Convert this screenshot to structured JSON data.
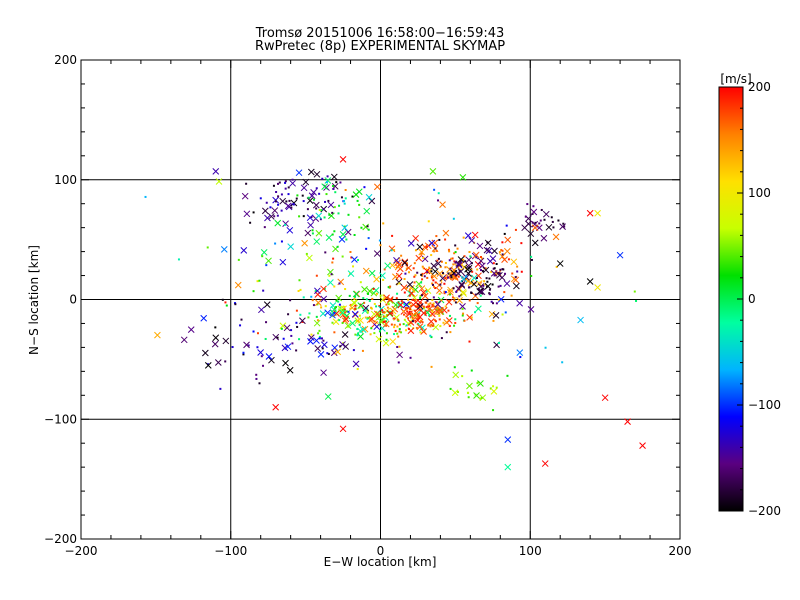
{
  "chart_data": {
    "type": "scatter",
    "title": "Tromsø 20151006 16:58:00−16:59:43",
    "subtitle": "RwPretec (8p) EXPERIMENTAL SKYMAP",
    "xlabel": "E−W location [km]",
    "ylabel": "N−S location [km]",
    "xlim": [
      -200,
      200
    ],
    "ylim": [
      -200,
      200
    ],
    "xticks": [
      -200,
      -100,
      0,
      100,
      200
    ],
    "yticks": [
      -200,
      -100,
      0,
      100,
      200
    ],
    "xticklabels": [
      "−200",
      "−100",
      "0",
      "100",
      "200"
    ],
    "yticklabels": [
      "−200",
      "−100",
      "0",
      "100",
      "200"
    ],
    "gridlines": [
      -100,
      0,
      100
    ],
    "colorbar": {
      "label": "[m/s]",
      "range": [
        -200,
        200
      ],
      "ticks": [
        200,
        100,
        0,
        -100,
        -200
      ],
      "ticklabels": [
        "200",
        "100",
        "0",
        "−100",
        "−200"
      ],
      "colors": [
        "#000000",
        "#5a0080",
        "#0000ff",
        "#00b4ff",
        "#00ffa0",
        "#00e000",
        "#c8ff00",
        "#ffe000",
        "#ff8000",
        "#ff0000"
      ]
    },
    "clusters": [
      {
        "center": [
          -55,
          82
        ],
        "spread": [
          18,
          12
        ],
        "count": 80,
        "vel_range": [
          -200,
          -120
        ]
      },
      {
        "center": [
          -30,
          70
        ],
        "spread": [
          12,
          18
        ],
        "count": 40,
        "vel_range": [
          -10,
          50
        ]
      },
      {
        "center": [
          0,
          -10
        ],
        "spread": [
          28,
          12
        ],
        "count": 260,
        "vel_range": [
          -40,
          200
        ]
      },
      {
        "center": [
          25,
          -12
        ],
        "spread": [
          14,
          8
        ],
        "count": 90,
        "vel_range": [
          150,
          200
        ]
      },
      {
        "center": [
          45,
          25
        ],
        "spread": [
          25,
          16
        ],
        "count": 180,
        "vel_range": [
          120,
          200
        ]
      },
      {
        "center": [
          60,
          20
        ],
        "spread": [
          20,
          12
        ],
        "count": 130,
        "vel_range": [
          -200,
          -140
        ]
      },
      {
        "center": [
          105,
          65
        ],
        "spread": [
          12,
          8
        ],
        "count": 30,
        "vel_range": [
          -200,
          -150
        ]
      },
      {
        "center": [
          -60,
          -30
        ],
        "spread": [
          30,
          18
        ],
        "count": 80,
        "vel_range": [
          -200,
          -100
        ]
      },
      {
        "center": [
          60,
          -75
        ],
        "spread": [
          10,
          10
        ],
        "count": 25,
        "vel_range": [
          20,
          80
        ]
      },
      {
        "center": [
          0,
          20
        ],
        "spread": [
          60,
          40
        ],
        "count": 160,
        "vel_range": [
          -200,
          200
        ]
      }
    ],
    "extra_points": [
      {
        "x": -110,
        "y": 107,
        "v": -140
      },
      {
        "x": -25,
        "y": 117,
        "v": 200
      },
      {
        "x": 35,
        "y": 107,
        "v": 40
      },
      {
        "x": 55,
        "y": 102,
        "v": 30
      },
      {
        "x": 140,
        "y": 72,
        "v": 200
      },
      {
        "x": 145,
        "y": 72,
        "v": 100
      },
      {
        "x": 120,
        "y": 30,
        "v": -200
      },
      {
        "x": 140,
        "y": 15,
        "v": -200
      },
      {
        "x": 145,
        "y": 10,
        "v": 100
      },
      {
        "x": 160,
        "y": 37,
        "v": -100
      },
      {
        "x": 150,
        "y": -82,
        "v": 200
      },
      {
        "x": 165,
        "y": -102,
        "v": 200
      },
      {
        "x": 175,
        "y": -122,
        "v": 200
      },
      {
        "x": 85,
        "y": -140,
        "v": -20
      },
      {
        "x": 85,
        "y": -117,
        "v": -100
      },
      {
        "x": 110,
        "y": -137,
        "v": 200
      },
      {
        "x": -115,
        "y": -55,
        "v": -200
      },
      {
        "x": -25,
        "y": -108,
        "v": 200
      },
      {
        "x": -95,
        "y": 12,
        "v": 150
      },
      {
        "x": -70,
        "y": -90,
        "v": 200
      }
    ]
  }
}
